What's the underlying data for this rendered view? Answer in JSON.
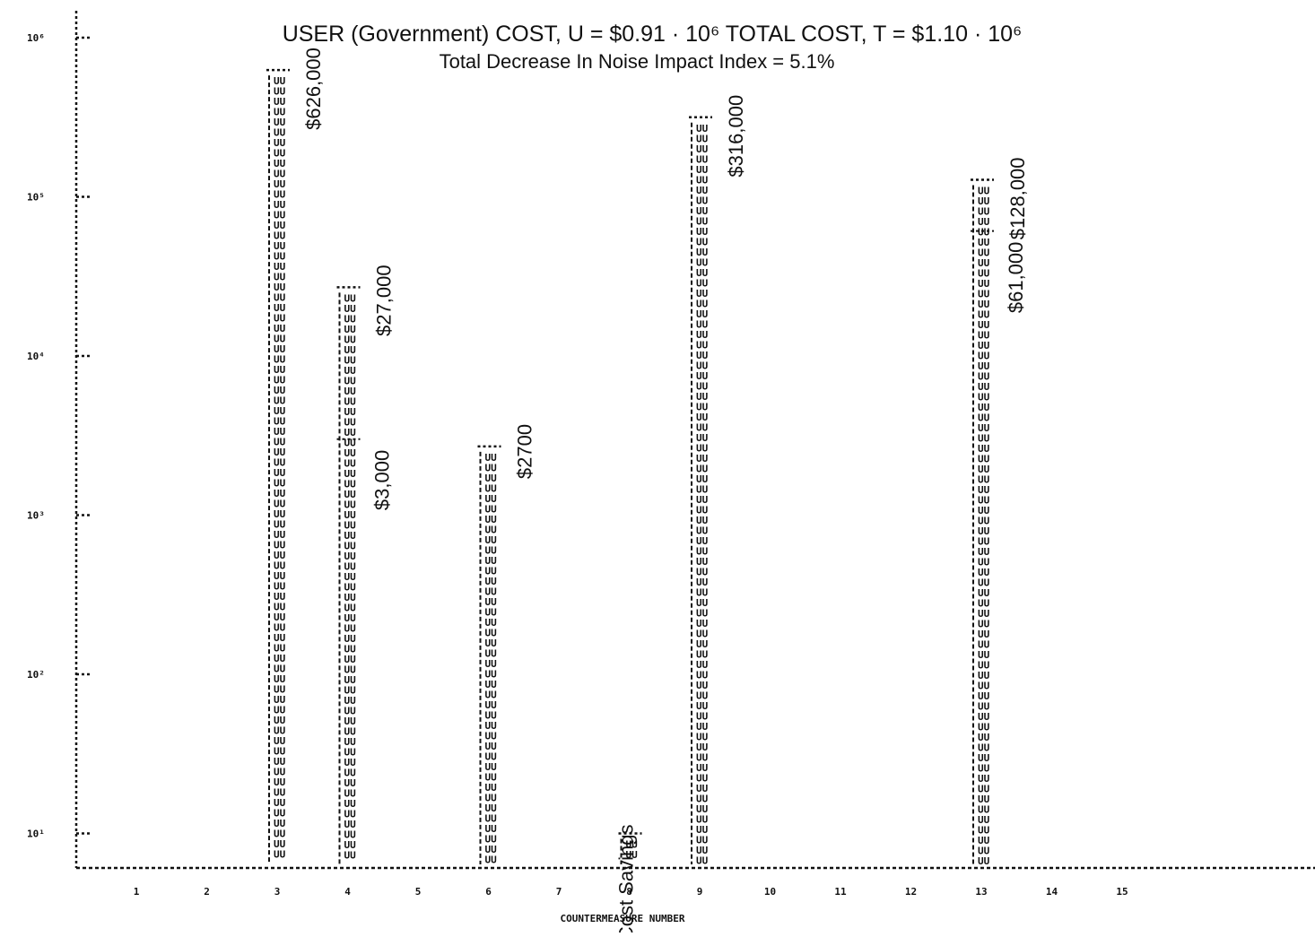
{
  "chart_data": {
    "type": "bar",
    "title": "USER (Government) COST, U = $0.91 · 10⁶  TOTAL COST, T = $1.10 · 10⁶",
    "subtitle": "Total Decrease In Noise Impact Index = 5.1%",
    "xlabel": "COUNTERMEASURE NUMBER",
    "ylabel": "",
    "y_scale": "log",
    "ylim": [
      5,
      1000000
    ],
    "x_ticks": [
      "1",
      "2",
      "3",
      "4",
      "5",
      "6",
      "7",
      "8",
      "9",
      "10",
      "11",
      "12",
      "13",
      "14",
      "15"
    ],
    "y_ticks": [
      {
        "value": 10,
        "label": "10¹"
      },
      {
        "value": 100,
        "label": "10²"
      },
      {
        "value": 1000,
        "label": "10³"
      },
      {
        "value": 10000,
        "label": "10⁴"
      },
      {
        "value": 100000,
        "label": "10⁵"
      },
      {
        "value": 1000000,
        "label": "10⁶"
      }
    ],
    "bar_fill_symbol": "U",
    "grid": false,
    "bars": [
      {
        "category": "3",
        "value": 626000,
        "label": "$626,000"
      },
      {
        "category": "4",
        "value": 27000,
        "label": "$27,000",
        "label2": "$3,000",
        "value2": 3000
      },
      {
        "category": "6",
        "value": 2700,
        "label": "$2700"
      },
      {
        "category": "8",
        "value": 10,
        "label": "Cost Savings"
      },
      {
        "category": "9",
        "value": 316000,
        "label": "$316,000"
      },
      {
        "category": "13",
        "value": 128000,
        "label": "$128,000",
        "label2": "$61,000",
        "value2": 61000
      }
    ]
  }
}
